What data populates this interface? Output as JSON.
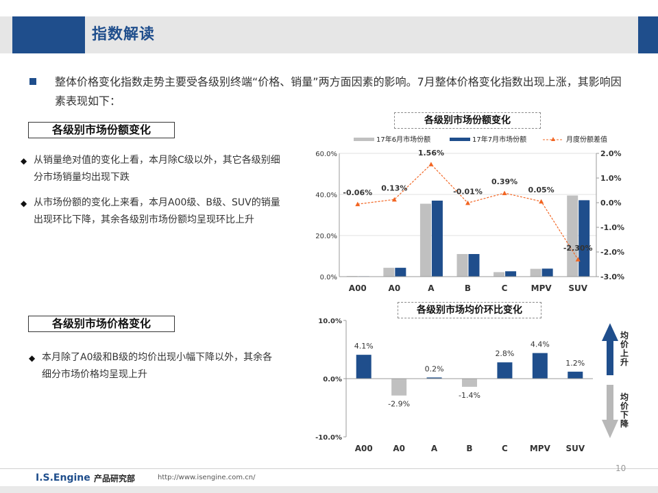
{
  "title": "指数解读",
  "intro": "整体价格变化指数走势主要受各级别终端“价格、销量”两方面因素的影响。7月整体价格变化指数出现上涨，其影响因素表现如下：",
  "section1": {
    "heading": "各级别市场份额变化",
    "bullets": [
      "从销量绝对值的变化上看，本月除C级以外，其它各级别细分市场销量均出现下跌",
      "从市场份额的变化上来看，本月A00级、B级、SUV的销量出现环比下降，其余各级别市场份额均呈现环比上升"
    ]
  },
  "section2": {
    "heading": "各级别市场价格变化",
    "bullets": [
      "本月除了A0级和B级的均价出现小幅下降以外，其余各细分市场价格均呈现上升"
    ]
  },
  "arrows": {
    "up": "均价上升",
    "down": "均价下降"
  },
  "chart_data": [
    {
      "type": "bar",
      "title": "各级别市场份额变化",
      "categories": [
        "A00",
        "A0",
        "A",
        "B",
        "C",
        "MPV",
        "SUV"
      ],
      "series": [
        {
          "name": "17年6月市场份额",
          "type": "bar",
          "color": "#c0c0c0",
          "values": [
            0.3,
            4.3,
            35.5,
            11.0,
            2.2,
            3.8,
            39.5
          ]
        },
        {
          "name": "17年7月市场份额",
          "type": "bar",
          "color": "#1f4e8c",
          "values": [
            0.2,
            4.3,
            37.0,
            11.0,
            2.6,
            3.9,
            37.2
          ]
        },
        {
          "name": "月度份额差值",
          "type": "line",
          "axis": "right",
          "color": "#f26522",
          "values": [
            -0.06,
            0.13,
            1.56,
            -0.01,
            0.39,
            0.05,
            -2.3
          ]
        }
      ],
      "data_labels": [
        "-0.06%",
        "0.13%",
        "1.56%",
        "-0.01%",
        "0.39%",
        "0.05%",
        "-2.30%"
      ],
      "ylim": [
        0,
        60
      ],
      "y2lim": [
        -3,
        2
      ],
      "yticks": [
        "0.0%",
        "20.0%",
        "40.0%",
        "60.0%"
      ],
      "y2ticks": [
        "-3.0%",
        "-2.0%",
        "-1.0%",
        "0.0%",
        "1.0%",
        "2.0%"
      ],
      "legend": "top"
    },
    {
      "type": "bar",
      "title": "各级别市场均价环比变化",
      "categories": [
        "A00",
        "A0",
        "A",
        "B",
        "C",
        "MPV",
        "SUV"
      ],
      "values": [
        4.1,
        -2.9,
        0.2,
        -1.4,
        2.8,
        4.4,
        1.2
      ],
      "data_labels": [
        "4.1%",
        "-2.9%",
        "0.2%",
        "-1.4%",
        "2.8%",
        "4.4%",
        "1.2%"
      ],
      "colors": {
        "positive": "#1f4e8c",
        "negative": "#c0c0c0"
      },
      "ylim": [
        -10,
        10
      ],
      "yticks": [
        "-10.0%",
        "0.0%",
        "10.0%"
      ]
    }
  ],
  "footer": {
    "brand": "I.S.Engine",
    "dept": "产品研究部",
    "url": "http://www.isengine.com.cn/",
    "page": "10"
  }
}
